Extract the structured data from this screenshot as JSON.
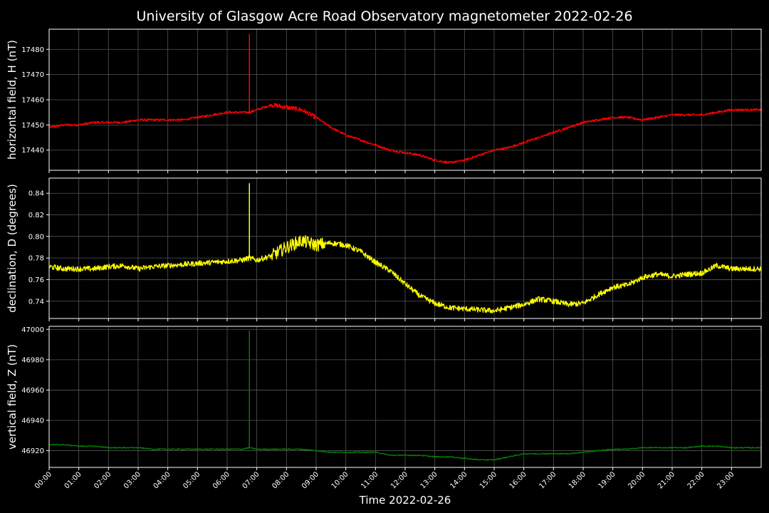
{
  "title": "University of Glasgow Acre Road Observatory magnetometer 2022-02-26",
  "chart_data": {
    "type": "line",
    "title": "University of Glasgow Acre Road Observatory magnetometer 2022-02-26",
    "xlabel": "Time 2022-02-26",
    "x_ticks": [
      "00:00",
      "01:00",
      "02:00",
      "03:00",
      "04:00",
      "05:00",
      "06:00",
      "07:00",
      "08:00",
      "09:00",
      "10:00",
      "11:00",
      "12:00",
      "13:00",
      "14:00",
      "15:00",
      "16:00",
      "17:00",
      "18:00",
      "19:00",
      "20:00",
      "21:00",
      "22:00",
      "23:00"
    ],
    "xlim": [
      0,
      24
    ],
    "grid": true,
    "panels": [
      {
        "name": "H",
        "ylabel": "horizontal field, H (nT)",
        "color": "#ff0000",
        "ylim": [
          17432,
          17488
        ],
        "yticks": [
          17440,
          17450,
          17460,
          17470,
          17480
        ],
        "x": [
          0,
          0.5,
          1,
          1.5,
          2,
          2.5,
          3,
          3.5,
          4,
          4.5,
          5,
          5.5,
          6,
          6.5,
          6.75,
          7,
          7.5,
          8,
          8.5,
          9,
          9.5,
          10,
          10.5,
          11,
          11.5,
          12,
          12.5,
          13,
          13.5,
          14,
          14.5,
          15,
          15.5,
          16,
          16.5,
          17,
          17.5,
          18,
          18.5,
          19,
          19.5,
          20,
          20.5,
          21,
          21.5,
          22,
          22.5,
          23,
          23.5,
          24
        ],
        "y": [
          17449,
          17450,
          17450,
          17451,
          17451,
          17451,
          17452,
          17452,
          17452,
          17452,
          17453,
          17454,
          17455,
          17455,
          17455,
          17456,
          17458,
          17457,
          17456,
          17453,
          17449,
          17446,
          17444,
          17442,
          17440,
          17439,
          17438,
          17436,
          17435,
          17436,
          17438,
          17440,
          17441,
          17443,
          17445,
          17447,
          17449,
          17451,
          17452,
          17453,
          17453,
          17452,
          17453,
          17454,
          17454,
          17454,
          17455,
          17456,
          17456,
          17456
        ],
        "spike": {
          "x": 6.75,
          "y": 17486
        }
      },
      {
        "name": "D",
        "ylabel": "declination, D (degrees)",
        "color": "#ffff00",
        "ylim": [
          0.724,
          0.854
        ],
        "yticks": [
          0.74,
          0.76,
          0.78,
          0.8,
          0.82,
          0.84
        ],
        "x": [
          0,
          0.5,
          1,
          1.5,
          2,
          2.5,
          3,
          3.5,
          4,
          4.5,
          5,
          5.5,
          6,
          6.5,
          6.75,
          7,
          7.5,
          8,
          8.5,
          9,
          9.5,
          10,
          10.5,
          11,
          11.5,
          12,
          12.5,
          13,
          13.5,
          14,
          14.5,
          15,
          15.5,
          16,
          16.5,
          17,
          17.5,
          18,
          18.5,
          19,
          19.5,
          20,
          20.5,
          21,
          21.5,
          22,
          22.5,
          23,
          23.5,
          24
        ],
        "y": [
          0.772,
          0.77,
          0.77,
          0.77,
          0.772,
          0.773,
          0.77,
          0.772,
          0.773,
          0.774,
          0.775,
          0.776,
          0.777,
          0.778,
          0.78,
          0.778,
          0.782,
          0.79,
          0.796,
          0.792,
          0.794,
          0.792,
          0.786,
          0.776,
          0.768,
          0.756,
          0.745,
          0.738,
          0.734,
          0.733,
          0.732,
          0.731,
          0.734,
          0.737,
          0.742,
          0.74,
          0.737,
          0.738,
          0.746,
          0.753,
          0.755,
          0.762,
          0.765,
          0.763,
          0.765,
          0.766,
          0.773,
          0.77,
          0.77,
          0.77
        ],
        "spike": {
          "x": 6.75,
          "y": 0.849
        }
      },
      {
        "name": "Z",
        "ylabel": "vertical field, Z (nT)",
        "color": "#008000",
        "ylim": [
          46909,
          47002
        ],
        "yticks": [
          46920,
          46940,
          46960,
          46980,
          47000
        ],
        "x": [
          0,
          0.5,
          1,
          1.5,
          2,
          2.5,
          3,
          3.5,
          4,
          4.5,
          5,
          5.5,
          6,
          6.5,
          6.75,
          7,
          7.5,
          8,
          8.5,
          9,
          9.5,
          10,
          10.5,
          11,
          11.5,
          12,
          12.5,
          13,
          13.5,
          14,
          14.5,
          15,
          15.5,
          16,
          16.5,
          17,
          17.5,
          18,
          18.5,
          19,
          19.5,
          20,
          20.5,
          21,
          21.5,
          22,
          22.5,
          23,
          23.5,
          24
        ],
        "y": [
          46924,
          46924,
          46923,
          46923,
          46922,
          46922,
          46922,
          46921,
          46921,
          46921,
          46921,
          46921,
          46921,
          46921,
          46922,
          46921,
          46921,
          46921,
          46921,
          46920,
          46919,
          46919,
          46919,
          46919,
          46917,
          46917,
          46917,
          46916,
          46916,
          46915,
          46914,
          46914,
          46916,
          46918,
          46918,
          46918,
          46918,
          46919,
          46920,
          46921,
          46921,
          46922,
          46922,
          46922,
          46922,
          46923,
          46923,
          46922,
          46922,
          46922
        ],
        "spike": {
          "x": 6.75,
          "y": 46999
        }
      }
    ]
  }
}
